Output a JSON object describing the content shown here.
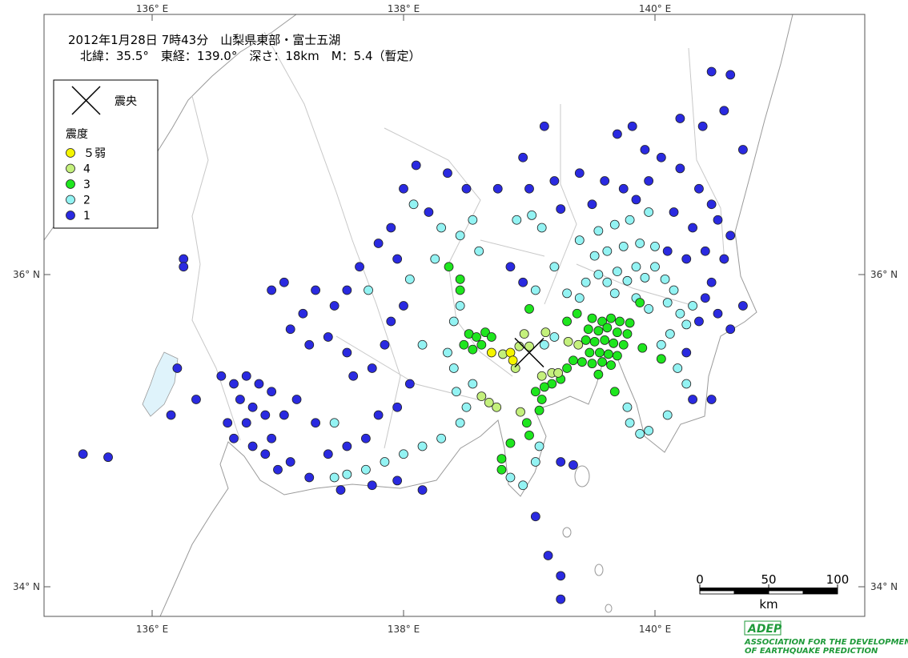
{
  "header": {
    "title": "2012年1月28日 7時43分　山梨県東部・富士五湖",
    "subtitle": "北緯：35.5°　東経：139.0°　深さ：18km　M：5.4（暫定）"
  },
  "map": {
    "lon_ticks": [
      {
        "value": 136,
        "label": "136° E"
      },
      {
        "value": 138,
        "label": "138° E"
      },
      {
        "value": 140,
        "label": "140° E"
      }
    ],
    "lat_ticks": [
      {
        "value": 34,
        "label": "34° N"
      },
      {
        "value": 36,
        "label": "36° N"
      }
    ],
    "epicenter": {
      "lon": 139.0,
      "lat": 35.5
    },
    "legend": {
      "epicenter_label": "震央",
      "intensity_title": "震度",
      "classes": [
        {
          "label": "５弱",
          "color": "#f5f500"
        },
        {
          "label": "4",
          "color": "#c4f07c"
        },
        {
          "label": "3",
          "color": "#1ee61e"
        },
        {
          "label": "2",
          "color": "#93f3f3"
        },
        {
          "label": "1",
          "color": "#2a2ae0"
        }
      ]
    },
    "scale": {
      "ticks": [
        0,
        50,
        100
      ],
      "unit": "km"
    },
    "stations": [
      [
        138.85,
        35.5,
        0
      ],
      [
        138.87,
        35.45,
        0
      ],
      [
        138.7,
        35.5,
        0
      ],
      [
        138.96,
        35.62,
        1
      ],
      [
        139.13,
        35.63,
        1
      ],
      [
        138.92,
        35.54,
        1
      ],
      [
        139.0,
        35.54,
        1
      ],
      [
        138.79,
        35.49,
        1
      ],
      [
        138.89,
        35.4,
        1
      ],
      [
        139.1,
        35.35,
        1
      ],
      [
        139.18,
        35.37,
        1
      ],
      [
        139.23,
        35.37,
        1
      ],
      [
        138.62,
        35.22,
        1
      ],
      [
        138.68,
        35.18,
        1
      ],
      [
        138.74,
        35.15,
        1
      ],
      [
        138.93,
        35.12,
        1
      ],
      [
        139.39,
        35.55,
        1
      ],
      [
        139.31,
        35.57,
        1
      ],
      [
        139.5,
        35.72,
        2
      ],
      [
        139.58,
        35.7,
        2
      ],
      [
        139.65,
        35.72,
        2
      ],
      [
        139.72,
        35.7,
        2
      ],
      [
        139.8,
        35.69,
        2
      ],
      [
        139.47,
        35.65,
        2
      ],
      [
        139.55,
        35.64,
        2
      ],
      [
        139.62,
        35.66,
        2
      ],
      [
        139.7,
        35.63,
        2
      ],
      [
        139.78,
        35.62,
        2
      ],
      [
        139.45,
        35.58,
        2
      ],
      [
        139.52,
        35.57,
        2
      ],
      [
        139.6,
        35.58,
        2
      ],
      [
        139.67,
        35.56,
        2
      ],
      [
        139.75,
        35.55,
        2
      ],
      [
        139.48,
        35.5,
        2
      ],
      [
        139.56,
        35.5,
        2
      ],
      [
        139.63,
        35.49,
        2
      ],
      [
        139.7,
        35.48,
        2
      ],
      [
        139.42,
        35.44,
        2
      ],
      [
        139.5,
        35.43,
        2
      ],
      [
        139.58,
        35.44,
        2
      ],
      [
        139.65,
        35.42,
        2
      ],
      [
        139.55,
        35.36,
        2
      ],
      [
        139.35,
        35.45,
        2
      ],
      [
        139.3,
        35.4,
        2
      ],
      [
        139.25,
        35.33,
        2
      ],
      [
        139.18,
        35.3,
        2
      ],
      [
        139.12,
        35.28,
        2
      ],
      [
        139.05,
        35.25,
        2
      ],
      [
        139.1,
        35.2,
        2
      ],
      [
        139.08,
        35.13,
        2
      ],
      [
        138.98,
        35.05,
        2
      ],
      [
        139.0,
        34.97,
        2
      ],
      [
        138.85,
        34.92,
        2
      ],
      [
        138.78,
        34.82,
        2
      ],
      [
        138.78,
        34.75,
        2
      ],
      [
        138.52,
        35.62,
        2
      ],
      [
        138.58,
        35.6,
        2
      ],
      [
        138.65,
        35.63,
        2
      ],
      [
        138.7,
        35.6,
        2
      ],
      [
        138.55,
        35.52,
        2
      ],
      [
        138.62,
        35.55,
        2
      ],
      [
        138.48,
        35.55,
        2
      ],
      [
        138.45,
        35.97,
        2
      ],
      [
        138.45,
        35.9,
        2
      ],
      [
        138.36,
        36.05,
        2
      ],
      [
        139.0,
        35.78,
        2
      ],
      [
        139.3,
        35.7,
        2
      ],
      [
        139.9,
        35.53,
        2
      ],
      [
        139.68,
        35.25,
        2
      ],
      [
        140.05,
        35.46,
        2
      ],
      [
        139.88,
        35.82,
        2
      ],
      [
        139.38,
        35.75,
        2
      ],
      [
        139.45,
        35.95,
        3
      ],
      [
        139.55,
        36.0,
        3
      ],
      [
        139.62,
        35.95,
        3
      ],
      [
        139.7,
        36.02,
        3
      ],
      [
        139.78,
        35.96,
        3
      ],
      [
        139.85,
        36.05,
        3
      ],
      [
        139.92,
        35.98,
        3
      ],
      [
        140.0,
        36.05,
        3
      ],
      [
        140.08,
        35.97,
        3
      ],
      [
        140.15,
        35.9,
        3
      ],
      [
        139.52,
        36.12,
        3
      ],
      [
        139.62,
        36.15,
        3
      ],
      [
        139.75,
        36.18,
        3
      ],
      [
        139.88,
        36.2,
        3
      ],
      [
        140.0,
        36.18,
        3
      ],
      [
        139.4,
        36.22,
        3
      ],
      [
        139.55,
        36.28,
        3
      ],
      [
        139.68,
        36.32,
        3
      ],
      [
        139.8,
        36.35,
        3
      ],
      [
        139.95,
        36.4,
        3
      ],
      [
        140.1,
        35.82,
        3
      ],
      [
        140.2,
        35.75,
        3
      ],
      [
        140.25,
        35.68,
        3
      ],
      [
        140.12,
        35.62,
        3
      ],
      [
        140.3,
        35.8,
        3
      ],
      [
        139.95,
        35.78,
        3
      ],
      [
        139.85,
        35.85,
        3
      ],
      [
        140.05,
        35.55,
        3
      ],
      [
        140.18,
        35.4,
        3
      ],
      [
        140.25,
        35.3,
        3
      ],
      [
        140.1,
        35.1,
        3
      ],
      [
        139.95,
        35.0,
        3
      ],
      [
        139.88,
        34.98,
        3
      ],
      [
        139.78,
        35.15,
        3
      ],
      [
        139.8,
        35.05,
        3
      ],
      [
        139.68,
        35.88,
        3
      ],
      [
        139.4,
        35.85,
        3
      ],
      [
        139.3,
        35.88,
        3
      ],
      [
        139.2,
        35.6,
        3
      ],
      [
        139.12,
        35.55,
        3
      ],
      [
        138.45,
        35.8,
        3
      ],
      [
        138.4,
        35.7,
        3
      ],
      [
        138.35,
        35.5,
        3
      ],
      [
        138.4,
        35.4,
        3
      ],
      [
        138.42,
        35.25,
        3
      ],
      [
        138.55,
        35.3,
        3
      ],
      [
        138.5,
        35.15,
        3
      ],
      [
        138.45,
        35.05,
        3
      ],
      [
        138.3,
        34.95,
        3
      ],
      [
        138.15,
        34.9,
        3
      ],
      [
        138.0,
        34.85,
        3
      ],
      [
        137.85,
        34.8,
        3
      ],
      [
        137.7,
        34.75,
        3
      ],
      [
        137.55,
        34.72,
        3
      ],
      [
        137.45,
        34.7,
        3
      ],
      [
        138.95,
        34.65,
        3
      ],
      [
        138.85,
        34.7,
        3
      ],
      [
        139.05,
        34.8,
        3
      ],
      [
        139.08,
        34.9,
        3
      ],
      [
        138.25,
        36.1,
        3
      ],
      [
        138.3,
        36.3,
        3
      ],
      [
        138.45,
        36.25,
        3
      ],
      [
        138.6,
        36.15,
        3
      ],
      [
        138.55,
        36.35,
        3
      ],
      [
        138.9,
        36.35,
        3
      ],
      [
        139.02,
        36.38,
        3
      ],
      [
        139.1,
        36.3,
        3
      ],
      [
        139.2,
        36.05,
        3
      ],
      [
        139.05,
        35.9,
        3
      ],
      [
        138.08,
        36.45,
        3
      ],
      [
        137.72,
        35.9,
        3
      ],
      [
        138.05,
        35.97,
        3
      ],
      [
        137.45,
        35.05,
        3
      ],
      [
        138.15,
        35.55,
        3
      ],
      [
        139.7,
        36.9,
        4
      ],
      [
        139.82,
        36.95,
        4
      ],
      [
        139.92,
        36.8,
        4
      ],
      [
        140.05,
        36.75,
        4
      ],
      [
        140.2,
        36.68,
        4
      ],
      [
        140.35,
        36.55,
        4
      ],
      [
        140.45,
        36.45,
        4
      ],
      [
        140.5,
        36.35,
        4
      ],
      [
        140.6,
        36.25,
        4
      ],
      [
        140.55,
        36.1,
        4
      ],
      [
        140.45,
        35.95,
        4
      ],
      [
        140.4,
        35.85,
        4
      ],
      [
        140.35,
        35.7,
        4
      ],
      [
        140.5,
        35.75,
        4
      ],
      [
        140.7,
        35.8,
        4
      ],
      [
        140.6,
        35.65,
        4
      ],
      [
        140.25,
        35.5,
        4
      ],
      [
        140.3,
        35.2,
        4
      ],
      [
        140.45,
        35.2,
        4
      ],
      [
        139.6,
        36.6,
        4
      ],
      [
        139.4,
        36.65,
        4
      ],
      [
        139.2,
        36.6,
        4
      ],
      [
        139.0,
        36.55,
        4
      ],
      [
        139.25,
        36.42,
        4
      ],
      [
        139.5,
        36.45,
        4
      ],
      [
        139.75,
        36.55,
        4
      ],
      [
        139.95,
        36.6,
        4
      ],
      [
        140.15,
        36.4,
        4
      ],
      [
        140.3,
        36.3,
        4
      ],
      [
        140.4,
        36.15,
        4
      ],
      [
        140.25,
        36.1,
        4
      ],
      [
        140.1,
        36.15,
        4
      ],
      [
        139.85,
        36.48,
        4
      ],
      [
        140.45,
        37.3,
        4
      ],
      [
        140.6,
        37.28,
        4
      ],
      [
        140.7,
        36.8,
        4
      ],
      [
        140.38,
        36.95,
        4
      ],
      [
        140.2,
        37.0,
        4
      ],
      [
        139.12,
        36.95,
        4
      ],
      [
        138.95,
        36.75,
        4
      ],
      [
        138.75,
        36.55,
        4
      ],
      [
        138.5,
        36.55,
        4
      ],
      [
        138.35,
        36.65,
        4
      ],
      [
        138.1,
        36.7,
        4
      ],
      [
        138.0,
        36.55,
        4
      ],
      [
        138.2,
        36.4,
        4
      ],
      [
        137.9,
        36.3,
        4
      ],
      [
        137.8,
        36.2,
        4
      ],
      [
        137.95,
        36.1,
        4
      ],
      [
        137.65,
        36.05,
        4
      ],
      [
        137.55,
        35.9,
        4
      ],
      [
        137.45,
        35.8,
        4
      ],
      [
        137.3,
        35.9,
        4
      ],
      [
        137.2,
        35.75,
        4
      ],
      [
        137.05,
        35.95,
        4
      ],
      [
        136.95,
        35.9,
        4
      ],
      [
        137.1,
        35.65,
        4
      ],
      [
        137.25,
        35.55,
        4
      ],
      [
        137.4,
        35.6,
        4
      ],
      [
        137.55,
        35.5,
        4
      ],
      [
        137.6,
        35.35,
        4
      ],
      [
        137.75,
        35.4,
        4
      ],
      [
        137.85,
        35.55,
        4
      ],
      [
        137.9,
        35.7,
        4
      ],
      [
        138.0,
        35.8,
        4
      ],
      [
        138.05,
        35.3,
        4
      ],
      [
        137.95,
        35.15,
        4
      ],
      [
        137.8,
        35.1,
        4
      ],
      [
        137.7,
        34.95,
        4
      ],
      [
        137.55,
        34.9,
        4
      ],
      [
        137.4,
        34.85,
        4
      ],
      [
        137.3,
        35.05,
        4
      ],
      [
        137.15,
        35.2,
        4
      ],
      [
        137.05,
        35.1,
        4
      ],
      [
        136.95,
        35.25,
        4
      ],
      [
        136.85,
        35.3,
        4
      ],
      [
        136.75,
        35.35,
        4
      ],
      [
        136.7,
        35.2,
        4
      ],
      [
        136.8,
        35.15,
        4
      ],
      [
        136.9,
        35.1,
        4
      ],
      [
        136.75,
        35.05,
        4
      ],
      [
        136.65,
        35.3,
        4
      ],
      [
        136.6,
        35.05,
        4
      ],
      [
        136.55,
        35.35,
        4
      ],
      [
        136.65,
        34.95,
        4
      ],
      [
        136.8,
        34.9,
        4
      ],
      [
        136.9,
        34.85,
        4
      ],
      [
        137.0,
        34.75,
        4
      ],
      [
        137.1,
        34.8,
        4
      ],
      [
        136.95,
        34.95,
        4
      ],
      [
        137.25,
        34.7,
        4
      ],
      [
        137.5,
        34.62,
        4
      ],
      [
        137.75,
        34.65,
        4
      ],
      [
        137.95,
        34.68,
        4
      ],
      [
        138.15,
        34.62,
        4
      ],
      [
        136.2,
        35.4,
        4
      ],
      [
        136.35,
        35.2,
        4
      ],
      [
        136.15,
        35.1,
        4
      ],
      [
        135.45,
        34.85,
        4
      ],
      [
        135.65,
        34.83,
        4
      ],
      [
        136.25,
        36.1,
        4
      ],
      [
        136.25,
        36.05,
        4
      ],
      [
        138.85,
        36.05,
        4
      ],
      [
        138.95,
        35.95,
        4
      ],
      [
        139.05,
        34.45,
        4
      ],
      [
        139.25,
        34.8,
        4
      ],
      [
        139.35,
        34.78,
        4
      ],
      [
        139.25,
        34.07,
        4
      ],
      [
        139.15,
        34.2,
        4
      ],
      [
        139.25,
        33.92,
        4
      ],
      [
        140.55,
        37.05,
        4
      ]
    ]
  },
  "logo": {
    "mark": "ADEP",
    "line1": "ASSOCIATION FOR THE DEVELOPMENT",
    "line2": "OF EARTHQUAKE PREDICTION"
  }
}
